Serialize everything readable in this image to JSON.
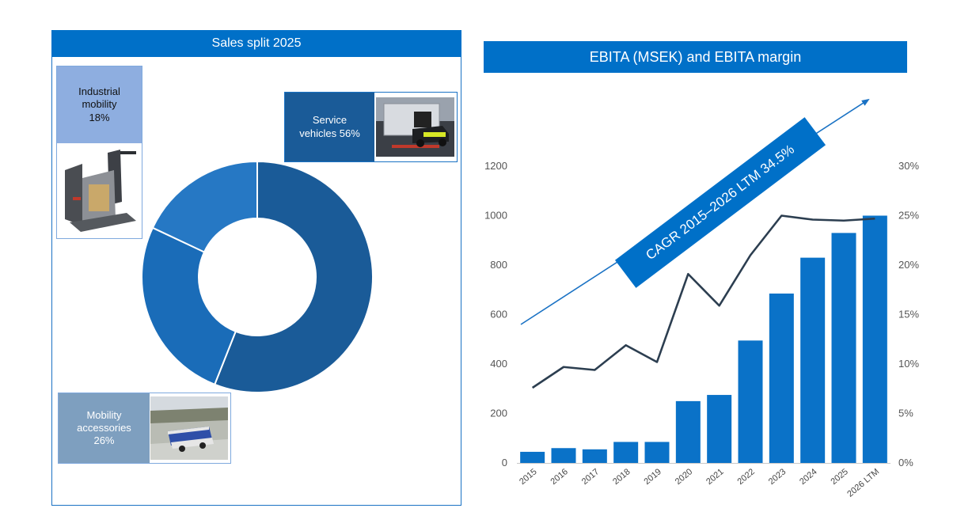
{
  "left": {
    "title": "Sales split 2025",
    "segments": {
      "service": {
        "label_line1": "Service",
        "label_line2": "vehicles 56%"
      },
      "industrial": {
        "label_line1": "Industrial",
        "label_line2": "mobility",
        "label_line3": "18%"
      },
      "mobility": {
        "label_line1": "Mobility",
        "label_line2": "accessories",
        "label_line3": "26%"
      }
    }
  },
  "right": {
    "title": "EBITA (MSEK) and EBITA margin",
    "cagr": "CAGR 2015–2026 LTM 34.5%"
  },
  "colors": {
    "header": "#0070c8",
    "donut_service": "#1a5b98",
    "donut_mobility": "#1a6cb8",
    "donut_industrial": "#2678c4",
    "bar": "#0a72c8",
    "line": "#2c3e50"
  },
  "chart_data": [
    {
      "type": "pie",
      "title": "Sales split 2025",
      "categories": [
        "Service vehicles",
        "Mobility accessories",
        "Industrial mobility"
      ],
      "values": [
        56,
        26,
        18
      ],
      "unit": "%"
    },
    {
      "type": "bar",
      "title": "EBITA (MSEK) and EBITA margin",
      "categories": [
        "2015",
        "2016",
        "2017",
        "2018",
        "2019",
        "2020",
        "2021",
        "2022",
        "2023",
        "2024",
        "2025",
        "2026 LTM"
      ],
      "series": [
        {
          "name": "EBITA (MSEK)",
          "type": "bar",
          "axis": "left",
          "values": [
            45,
            60,
            55,
            85,
            85,
            250,
            275,
            495,
            685,
            830,
            930,
            1000
          ]
        },
        {
          "name": "EBITA margin",
          "type": "line",
          "axis": "right",
          "values": [
            7.6,
            9.7,
            9.4,
            11.9,
            10.2,
            19.1,
            15.9,
            21.0,
            25.0,
            24.6,
            24.5,
            24.7
          ]
        }
      ],
      "ylim_left": [
        0,
        1200
      ],
      "yticks_left": [
        "0",
        "200",
        "400",
        "600",
        "800",
        "1000",
        "1200"
      ],
      "ylim_right": [
        0,
        30
      ],
      "yticks_right": [
        "0%",
        "5%",
        "10%",
        "15%",
        "20%",
        "25%",
        "30%"
      ],
      "annotation": "CAGR 2015–2026 LTM 34.5%"
    }
  ]
}
